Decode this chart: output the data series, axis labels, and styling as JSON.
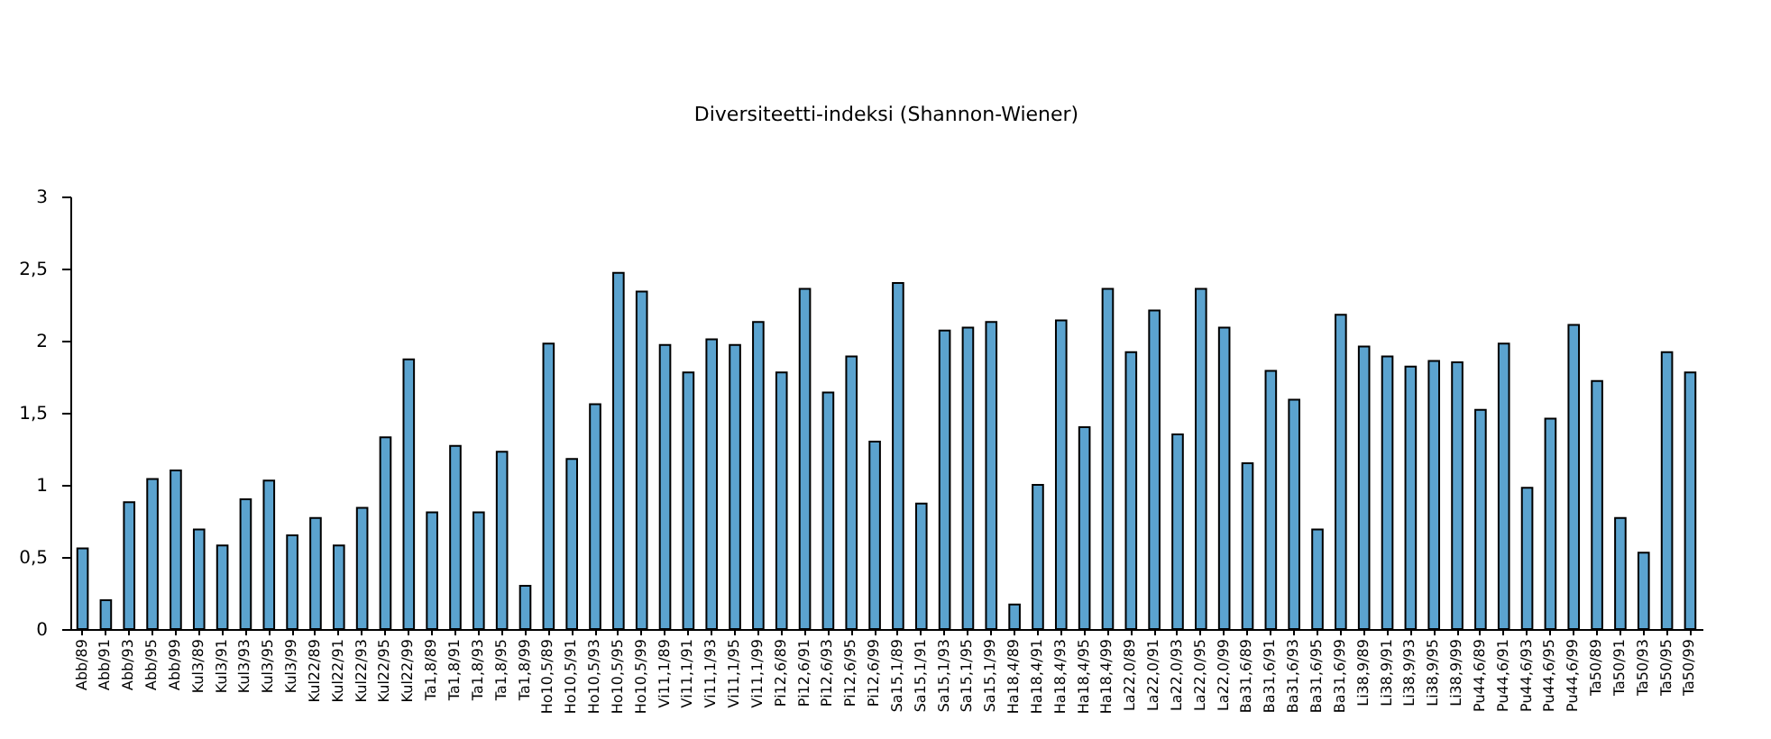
{
  "chart_data": {
    "type": "bar",
    "title": "Diversiteetti-indeksi (Shannon-Wiener)",
    "categories": [
      "Abb/89",
      "Abb/91",
      "Abb/93",
      "Abb/95",
      "Abb/99",
      "Kul3/89",
      "Kul3/91",
      "Kul3/93",
      "Kul3/95",
      "Kul3/99",
      "Kul22/89",
      "Kul22/91",
      "Kul22/93",
      "Kul22/95",
      "Kul22/99",
      "Ta1,8/89",
      "Ta1,8/91",
      "Ta1,8/93",
      "Ta1,8/95",
      "Ta1,8/99",
      "Ho10,5/89",
      "Ho10,5/91",
      "Ho10,5/93",
      "Ho10,5/95",
      "Ho10,5/99",
      "Vi11,1/89",
      "Vi11,1/91",
      "Vi11,1/93",
      "Vi11,1/95",
      "Vi11,1/99",
      "Pi12,6/89",
      "Pi12,6/91",
      "Pi12,6/93",
      "Pi12,6/95",
      "Pi12,6/99",
      "Sa15,1/89",
      "Sa15,1/91",
      "Sa15,1/93",
      "Sa15,1/95",
      "Sa15,1/99",
      "Ha18,4/89",
      "Ha18,4/91",
      "Ha18,4/93",
      "Ha18,4/95",
      "Ha18,4/99",
      "La22,0/89",
      "La22,0/91",
      "La22,0/93",
      "La22,0/95",
      "La22,0/99",
      "Ba31,6/89",
      "Ba31,6/91",
      "Ba31,6/93",
      "Ba31,6/95",
      "Ba31,6/99",
      "Li38,9/89",
      "Li38,9/91",
      "Li38,9/93",
      "Li38,9/95",
      "Li38,9/99",
      "Pu44,6/89",
      "Pu44,6/91",
      "Pu44,6/93",
      "Pu44,6/95",
      "Pu44,6/99",
      "Ta50/89",
      "Ta50/91",
      "Ta50/93",
      "Ta50/95",
      "Ta50/99"
    ],
    "values": [
      0.56,
      0.2,
      0.88,
      1.04,
      1.1,
      0.69,
      0.58,
      0.9,
      1.03,
      0.65,
      0.77,
      0.58,
      0.84,
      1.33,
      1.87,
      0.81,
      1.27,
      0.81,
      1.23,
      0.3,
      1.98,
      1.18,
      1.56,
      2.47,
      2.34,
      1.97,
      1.78,
      2.01,
      1.97,
      2.13,
      1.78,
      2.36,
      1.64,
      1.89,
      1.3,
      2.4,
      0.87,
      2.07,
      2.09,
      2.13,
      0.17,
      1.0,
      2.14,
      1.4,
      2.36,
      1.92,
      2.21,
      1.35,
      2.36,
      2.09,
      1.15,
      1.79,
      1.59,
      0.69,
      2.18,
      1.96,
      1.89,
      1.82,
      1.86,
      1.85,
      1.52,
      1.98,
      0.98,
      1.46,
      2.11,
      1.72,
      0.77,
      0.53,
      1.92,
      1.78
    ],
    "color": "#5ba3cf",
    "ylim": [
      0,
      3
    ],
    "yticks": [
      0,
      {
        "value": 0.5,
        "label": "0,5"
      },
      1,
      {
        "value": 1.5,
        "label": "1,5"
      },
      2,
      {
        "value": 2.5,
        "label": "2,5"
      },
      3
    ],
    "grid": false
  }
}
